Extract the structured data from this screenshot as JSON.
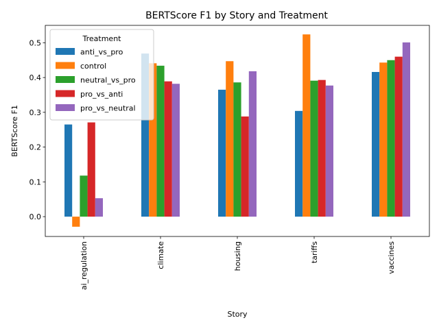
{
  "chart_data": {
    "type": "bar",
    "title": "BERTScore F1 by Story and Treatment",
    "xlabel": "Story",
    "ylabel": "BERTScore F1",
    "categories": [
      "ai_regulation",
      "climate",
      "housing",
      "tariffs",
      "vaccines"
    ],
    "ylim": [
      -0.057,
      0.55
    ],
    "yticks": [
      0.0,
      0.1,
      0.2,
      0.3,
      0.4,
      0.5
    ],
    "ytick_labels": [
      "0.0",
      "0.1",
      "0.2",
      "0.3",
      "0.4",
      "0.5"
    ],
    "legend": {
      "title": "Treatment",
      "placement": "upper-left"
    },
    "grid": false,
    "series": [
      {
        "name": "anti_vs_pro",
        "color": "#1f77b4",
        "values": [
          0.265,
          0.469,
          0.365,
          0.304,
          0.416
        ]
      },
      {
        "name": "control",
        "color": "#ff7f0e",
        "values": [
          -0.029,
          0.441,
          0.447,
          0.524,
          0.443
        ]
      },
      {
        "name": "neutral_vs_pro",
        "color": "#2ca02c",
        "values": [
          0.118,
          0.434,
          0.386,
          0.391,
          0.45
        ]
      },
      {
        "name": "pro_vs_anti",
        "color": "#d62728",
        "values": [
          0.271,
          0.389,
          0.288,
          0.393,
          0.46
        ]
      },
      {
        "name": "pro_vs_neutral",
        "color": "#9467bd",
        "values": [
          0.053,
          0.382,
          0.418,
          0.377,
          0.501
        ]
      }
    ]
  }
}
